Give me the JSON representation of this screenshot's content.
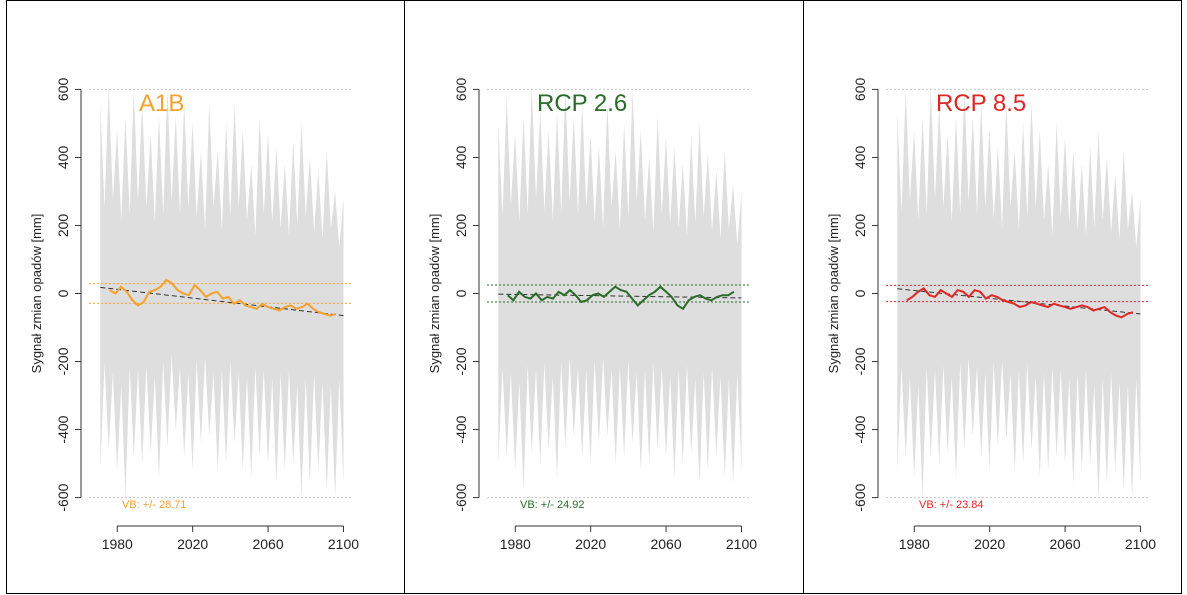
{
  "chart_data": [
    {
      "type": "line",
      "title": "A1B",
      "ylabel": "Sygnał zmian opadów [mm]",
      "xlabel": "",
      "xlim": [
        1965,
        2104
      ],
      "ylim": [
        -660,
        660
      ],
      "xticks": [
        1980,
        2020,
        2060,
        2100
      ],
      "yticks": [
        600,
        400,
        200,
        0,
        -200,
        -400,
        -600
      ],
      "xtick_labels": [
        "1980",
        "2020",
        "2060",
        "2100"
      ],
      "ytick_labels": [
        "600",
        "400",
        "200",
        "0",
        "-200",
        "-400",
        "-600"
      ],
      "color": "#f5a12e",
      "band_color": "#dedede",
      "envelope": {
        "x_start": 1971,
        "x_end": 2100,
        "upper": [
          560,
          610,
          480,
          520,
          600,
          560,
          470,
          520,
          600,
          520,
          560,
          500,
          420,
          560,
          420,
          500,
          560,
          480,
          380,
          520,
          470,
          430,
          380,
          450,
          500,
          400,
          360,
          420,
          300,
          280
        ],
        "lower": [
          -520,
          -460,
          -520,
          -600,
          -480,
          -500,
          -470,
          -540,
          -450,
          -400,
          -480,
          -520,
          -440,
          -420,
          -520,
          -500,
          -440,
          -520,
          -540,
          -480,
          -500,
          -560,
          -520,
          -500,
          -600,
          -560,
          -520,
          -580,
          -600,
          -560
        ]
      },
      "series": [
        {
          "x": [
            1976,
            1979,
            1982,
            1985,
            1988,
            1991,
            1994,
            1997,
            2000,
            2003,
            2006,
            2009,
            2012,
            2015,
            2018,
            2021,
            2024,
            2027,
            2030,
            2033,
            2036,
            2039,
            2042,
            2045,
            2048,
            2051,
            2054,
            2057,
            2060,
            2063,
            2066,
            2069,
            2072,
            2075,
            2078,
            2081,
            2084,
            2087,
            2090,
            2093,
            2096
          ],
          "values": [
            10,
            0,
            20,
            5,
            -20,
            -35,
            -25,
            5,
            10,
            20,
            40,
            30,
            10,
            0,
            -5,
            25,
            10,
            -10,
            0,
            5,
            -15,
            -10,
            -30,
            -20,
            -35,
            -40,
            -45,
            -30,
            -40,
            -45,
            -50,
            -40,
            -35,
            -45,
            -40,
            -30,
            -45,
            -55,
            -60,
            -65,
            -60
          ]
        }
      ],
      "trend": {
        "x": [
          1971,
          2100
        ],
        "values": [
          18,
          -65
        ]
      },
      "vb_band": [
        28.71,
        -28.71
      ],
      "annotation": "VB: +/- 28.71"
    },
    {
      "type": "line",
      "title": "RCP 2.6",
      "ylabel": "Sygnał zmian opadów [mm]",
      "xlabel": "",
      "xlim": [
        1965,
        2104
      ],
      "ylim": [
        -660,
        660
      ],
      "xticks": [
        1980,
        2020,
        2060,
        2100
      ],
      "yticks": [
        600,
        400,
        200,
        0,
        -200,
        -400,
        -600
      ],
      "xtick_labels": [
        "1980",
        "2020",
        "2060",
        "2100"
      ],
      "ytick_labels": [
        "600",
        "400",
        "200",
        "0",
        "-200",
        "-400",
        "-600"
      ],
      "color": "#2a6b2a",
      "band_color": "#dedede",
      "envelope": {
        "x_start": 1971,
        "x_end": 2100,
        "upper": [
          500,
          580,
          470,
          520,
          610,
          540,
          480,
          530,
          600,
          520,
          560,
          470,
          430,
          560,
          420,
          500,
          600,
          480,
          400,
          520,
          460,
          430,
          380,
          460,
          500,
          410,
          360,
          420,
          320,
          300
        ],
        "lower": [
          -500,
          -480,
          -520,
          -580,
          -470,
          -500,
          -460,
          -540,
          -450,
          -420,
          -480,
          -500,
          -440,
          -420,
          -500,
          -480,
          -440,
          -520,
          -500,
          -460,
          -480,
          -540,
          -500,
          -470,
          -560,
          -520,
          -480,
          -540,
          -560,
          -520
        ]
      },
      "series": [
        {
          "x": [
            1976,
            1979,
            1982,
            1985,
            1988,
            1991,
            1994,
            1997,
            2000,
            2003,
            2006,
            2009,
            2012,
            2015,
            2018,
            2021,
            2024,
            2027,
            2030,
            2033,
            2036,
            2039,
            2042,
            2045,
            2048,
            2051,
            2054,
            2057,
            2060,
            2063,
            2066,
            2069,
            2072,
            2075,
            2078,
            2081,
            2084,
            2087,
            2090,
            2093,
            2096
          ],
          "values": [
            -5,
            -20,
            5,
            -10,
            -15,
            0,
            -20,
            -10,
            -15,
            5,
            -5,
            10,
            -5,
            -25,
            -20,
            -5,
            0,
            -10,
            5,
            20,
            10,
            5,
            -15,
            -35,
            -20,
            -5,
            5,
            20,
            5,
            -10,
            -35,
            -45,
            -20,
            -10,
            -5,
            -15,
            -20,
            -10,
            -5,
            -5,
            5
          ]
        }
      ],
      "trend": {
        "x": [
          1971,
          2100
        ],
        "values": [
          -2,
          -13
        ]
      },
      "vb_band": [
        24.92,
        -24.92
      ],
      "annotation": "VB: +/- 24.92"
    },
    {
      "type": "line",
      "title": "RCP 8.5",
      "ylabel": "Sygnał zmian opadów [mm]",
      "xlabel": "",
      "xlim": [
        1965,
        2104
      ],
      "ylim": [
        -660,
        660
      ],
      "xticks": [
        1980,
        2020,
        2060,
        2100
      ],
      "yticks": [
        600,
        400,
        200,
        0,
        -200,
        -400,
        -600
      ],
      "xtick_labels": [
        "1980",
        "2020",
        "2060",
        "2100"
      ],
      "ytick_labels": [
        "600",
        "400",
        "200",
        "0",
        "-200",
        "-400",
        "-600"
      ],
      "color": "#e02525",
      "band_color": "#dedede",
      "envelope": {
        "x_start": 1971,
        "x_end": 2100,
        "upper": [
          530,
          600,
          480,
          520,
          610,
          560,
          470,
          520,
          600,
          520,
          560,
          490,
          430,
          560,
          420,
          500,
          560,
          480,
          380,
          500,
          460,
          420,
          380,
          430,
          480,
          400,
          350,
          420,
          300,
          280
        ],
        "lower": [
          -520,
          -480,
          -540,
          -600,
          -480,
          -500,
          -470,
          -540,
          -460,
          -420,
          -480,
          -520,
          -450,
          -430,
          -520,
          -500,
          -460,
          -540,
          -520,
          -480,
          -500,
          -560,
          -520,
          -500,
          -600,
          -560,
          -520,
          -580,
          -600,
          -560
        ]
      },
      "series": [
        {
          "x": [
            1976,
            1979,
            1982,
            1985,
            1988,
            1991,
            1994,
            1997,
            2000,
            2003,
            2006,
            2009,
            2012,
            2015,
            2018,
            2021,
            2024,
            2027,
            2030,
            2033,
            2036,
            2039,
            2042,
            2045,
            2048,
            2051,
            2054,
            2057,
            2060,
            2063,
            2066,
            2069,
            2072,
            2075,
            2078,
            2081,
            2084,
            2087,
            2090,
            2093,
            2096
          ],
          "values": [
            -20,
            -10,
            5,
            15,
            -5,
            -10,
            10,
            0,
            -10,
            10,
            5,
            -10,
            10,
            5,
            -15,
            -5,
            -10,
            -20,
            -25,
            -30,
            -40,
            -35,
            -25,
            -30,
            -35,
            -40,
            -30,
            -35,
            -40,
            -45,
            -40,
            -35,
            -40,
            -50,
            -45,
            -40,
            -55,
            -65,
            -70,
            -60,
            -55
          ]
        }
      ],
      "trend": {
        "x": [
          1971,
          2100
        ],
        "values": [
          14,
          -60
        ]
      },
      "vb_band": [
        23.84,
        -23.84
      ],
      "annotation": "VB: +/- 23.84"
    }
  ]
}
